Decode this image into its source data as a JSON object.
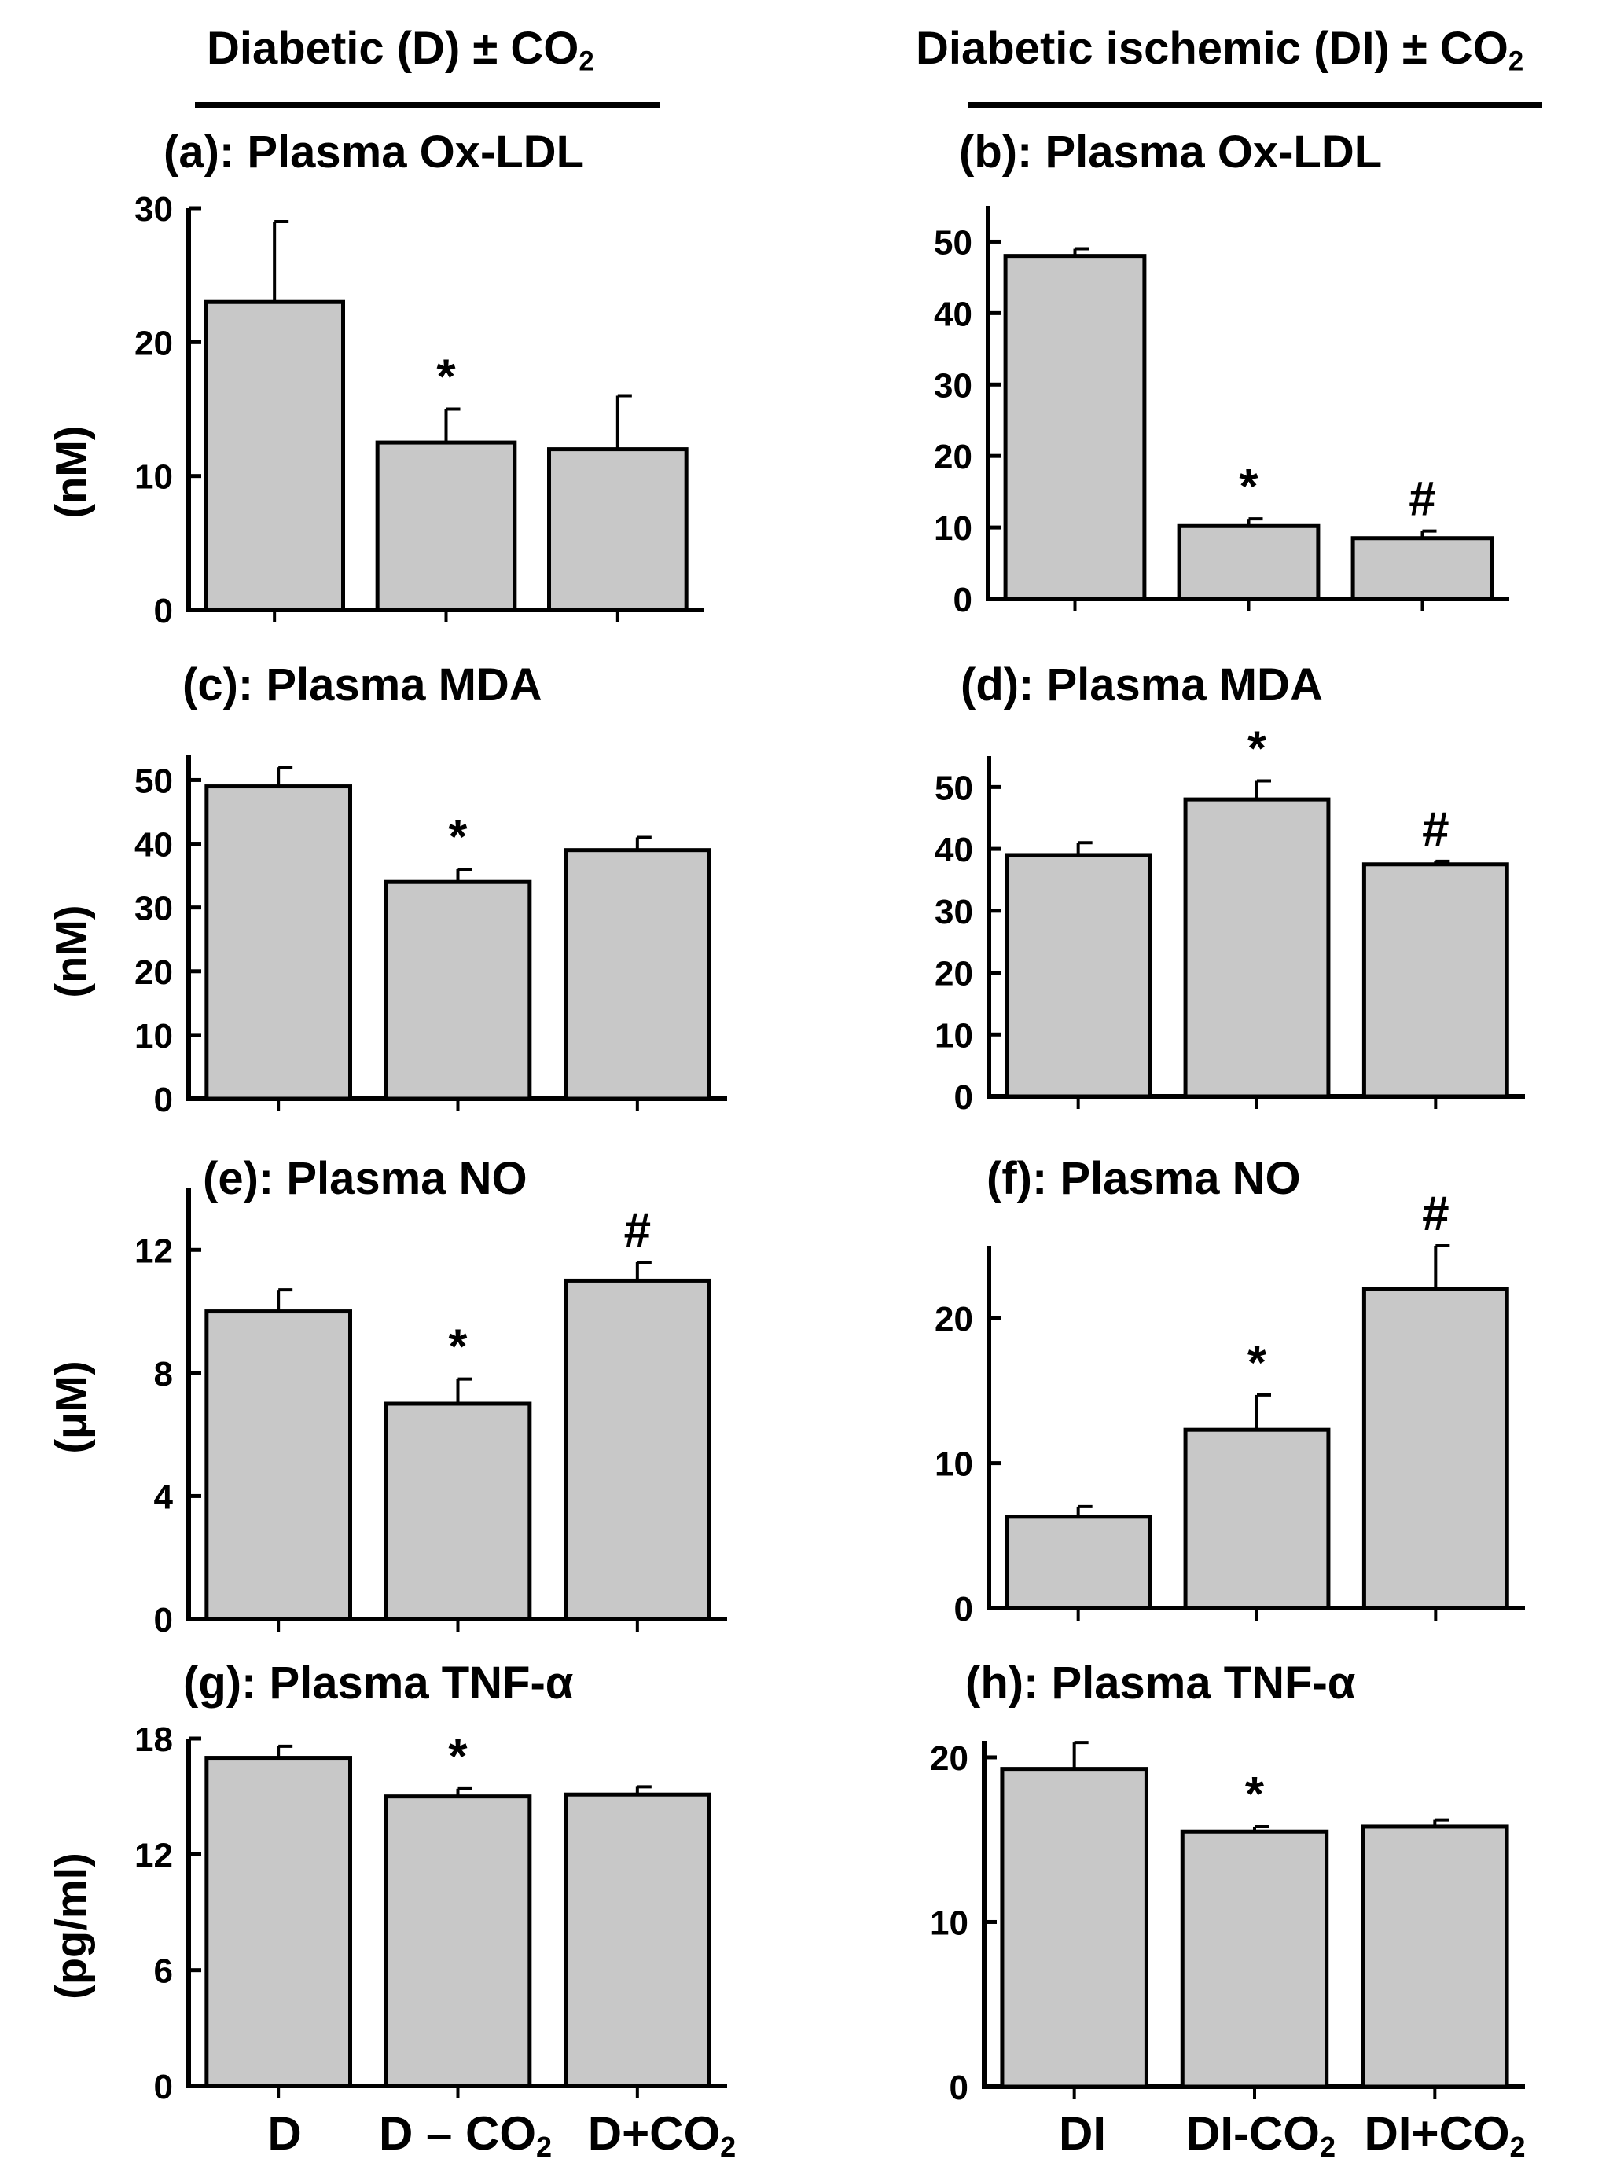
{
  "header": {
    "left": {
      "main": "Diabetic (D) ± CO",
      "sub": "2"
    },
    "right": {
      "main": "Diabetic ischemic (DI) ± CO",
      "sub": "2"
    }
  },
  "x_labels": {
    "left": [
      {
        "main": "D",
        "sub": ""
      },
      {
        "main": "D – CO",
        "sub": "2"
      },
      {
        "main": "D+CO",
        "sub": "2"
      }
    ],
    "right": [
      {
        "main": "DI",
        "sub": ""
      },
      {
        "main": "DI-CO",
        "sub": "2"
      },
      {
        "main": "DI+CO",
        "sub": "2"
      }
    ]
  },
  "colors": {
    "bar_fill": "#c8c8c8",
    "bar_stroke": "#000000",
    "axis": "#000000"
  },
  "chart_data": [
    {
      "id": "a",
      "type": "bar",
      "title": "(a): Plasma Ox-LDL",
      "ylabel": "(nM)",
      "categories": [
        "D",
        "D – CO2",
        "D+CO2"
      ],
      "values": [
        23,
        12.5,
        12
      ],
      "errors": [
        6,
        2.5,
        4
      ],
      "annotations": [
        "",
        "*",
        ""
      ],
      "ylim": [
        0,
        30
      ],
      "yticks": [
        0,
        10,
        20,
        30
      ]
    },
    {
      "id": "b",
      "type": "bar",
      "title": "(b): Plasma Ox-LDL",
      "ylabel": "",
      "categories": [
        "DI",
        "DI-CO2",
        "DI+CO2"
      ],
      "values": [
        48,
        10.2,
        8.5
      ],
      "errors": [
        1,
        1,
        1
      ],
      "annotations": [
        "",
        "*",
        "#"
      ],
      "ylim": [
        0,
        55
      ],
      "yticks": [
        0,
        10,
        20,
        30,
        40,
        50
      ]
    },
    {
      "id": "c",
      "type": "bar",
      "title": "(c): Plasma MDA",
      "ylabel": "(nM)",
      "categories": [
        "D",
        "D – CO2",
        "D+CO2"
      ],
      "values": [
        49,
        34,
        39
      ],
      "errors": [
        3,
        2,
        2
      ],
      "annotations": [
        "",
        "*",
        ""
      ],
      "ylim": [
        0,
        54
      ],
      "yticks": [
        0,
        10,
        20,
        30,
        40,
        50
      ]
    },
    {
      "id": "d",
      "type": "bar",
      "title": "(d): Plasma MDA",
      "ylabel": "",
      "categories": [
        "DI",
        "DI-CO2",
        "DI+CO2"
      ],
      "values": [
        39,
        48,
        37.5
      ],
      "errors": [
        2,
        3,
        0.5
      ],
      "annotations": [
        "",
        "*",
        "#"
      ],
      "ylim": [
        0,
        55
      ],
      "yticks": [
        0,
        10,
        20,
        30,
        40,
        50
      ]
    },
    {
      "id": "e",
      "type": "bar",
      "title": "(e): Plasma NO",
      "ylabel": "(μM)",
      "categories": [
        "D",
        "D – CO2",
        "D+CO2"
      ],
      "values": [
        10,
        7,
        11
      ],
      "errors": [
        0.7,
        0.8,
        0.6
      ],
      "annotations": [
        "",
        "*",
        "#"
      ],
      "ylim": [
        0,
        14
      ],
      "yticks": [
        0,
        4,
        8,
        12
      ]
    },
    {
      "id": "f",
      "type": "bar",
      "title": "(f): Plasma NO",
      "ylabel": "",
      "categories": [
        "DI",
        "DI-CO2",
        "DI+CO2"
      ],
      "values": [
        6.3,
        12.3,
        22
      ],
      "errors": [
        0.7,
        2.4,
        3
      ],
      "annotations": [
        "",
        "*",
        "#"
      ],
      "ylim": [
        0,
        25
      ],
      "yticks": [
        0,
        10,
        20
      ]
    },
    {
      "id": "g",
      "type": "bar",
      "title": "(g): Plasma TNF-α",
      "ylabel": "(pg/ml)",
      "categories": [
        "D",
        "D – CO2",
        "D+CO2"
      ],
      "values": [
        17,
        15,
        15.1
      ],
      "errors": [
        0.6,
        0.4,
        0.4
      ],
      "annotations": [
        "",
        "*",
        ""
      ],
      "ylim": [
        0,
        18
      ],
      "yticks": [
        0,
        6,
        12,
        18
      ]
    },
    {
      "id": "h",
      "type": "bar",
      "title": "(h): Plasma TNF-α",
      "ylabel": "",
      "categories": [
        "DI",
        "DI-CO2",
        "DI+CO2"
      ],
      "values": [
        19.3,
        15.5,
        15.8
      ],
      "errors": [
        1.6,
        0.3,
        0.4
      ],
      "annotations": [
        "",
        "*",
        ""
      ],
      "ylim": [
        0,
        21
      ],
      "yticks": [
        0,
        10,
        20
      ]
    }
  ]
}
